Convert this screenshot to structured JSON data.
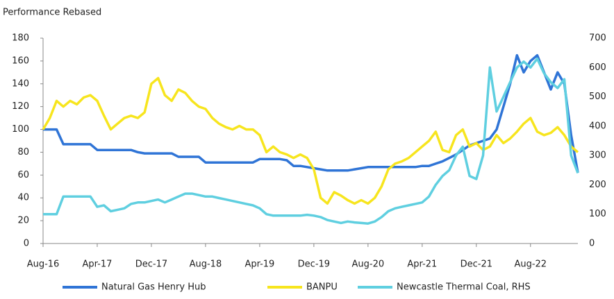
{
  "chart_data": {
    "type": "line",
    "title": "Performance Rebased",
    "categories": [
      "Aug-16",
      null,
      null,
      null,
      null,
      null,
      null,
      null,
      "Apr-17",
      null,
      null,
      null,
      null,
      null,
      null,
      null,
      "Dec-17",
      null,
      null,
      null,
      null,
      null,
      null,
      null,
      "Aug-18",
      null,
      null,
      null,
      null,
      null,
      null,
      null,
      "Apr-19",
      null,
      null,
      null,
      null,
      null,
      null,
      null,
      "Dec-19",
      null,
      null,
      null,
      null,
      null,
      null,
      null,
      "Aug-20",
      null,
      null,
      null,
      null,
      null,
      null,
      null,
      "Apr-21",
      null,
      null,
      null,
      null,
      null,
      null,
      null,
      "Dec-21",
      null,
      null,
      null,
      null,
      null,
      null,
      null,
      "Aug-22",
      null,
      null,
      null,
      null,
      null,
      null,
      null
    ],
    "ylim": [
      0,
      180
    ],
    "yticks": [
      0,
      20,
      40,
      60,
      80,
      100,
      120,
      140,
      160,
      180
    ],
    "y2lim": [
      0,
      700
    ],
    "y2ticks": [
      0,
      100,
      200,
      300,
      400,
      500,
      600,
      700
    ],
    "legend": "bottom",
    "series": [
      {
        "name": "Natural Gas Henry Hub",
        "color": "#2f74d6",
        "values": [
          100,
          100,
          100,
          87,
          87,
          87,
          87,
          87,
          82,
          82,
          82,
          82,
          82,
          82,
          80,
          79,
          79,
          79,
          79,
          79,
          76,
          76,
          76,
          76,
          71,
          71,
          71,
          71,
          71,
          71,
          71,
          71,
          74,
          74,
          74,
          74,
          73,
          68,
          68,
          67,
          66,
          65,
          64,
          64,
          64,
          64,
          65,
          66,
          67,
          67,
          67,
          67,
          67,
          67,
          67,
          67,
          68,
          68,
          70,
          72,
          75,
          78,
          82,
          86,
          88,
          90,
          92,
          100,
          120,
          140,
          165,
          150,
          160,
          165,
          150,
          135,
          150,
          140,
          95,
          62
        ]
      },
      {
        "name": "BANPU",
        "color": "#f7e51e",
        "values": [
          100,
          110,
          125,
          120,
          125,
          122,
          128,
          130,
          125,
          112,
          100,
          105,
          110,
          112,
          110,
          115,
          140,
          145,
          130,
          125,
          135,
          132,
          125,
          120,
          118,
          110,
          105,
          102,
          100,
          103,
          100,
          100,
          95,
          80,
          85,
          80,
          78,
          75,
          78,
          75,
          65,
          40,
          35,
          45,
          42,
          38,
          35,
          38,
          35,
          40,
          50,
          65,
          70,
          72,
          75,
          80,
          85,
          90,
          98,
          82,
          80,
          95,
          100,
          85,
          88,
          82,
          85,
          95,
          88,
          92,
          98,
          105,
          110,
          98,
          95,
          97,
          102,
          95,
          85,
          80
        ]
      },
      {
        "name": "Newcastle Thermal Coal, RHS",
        "color": "#5fcfe0",
        "axis": "y2",
        "values": [
          100,
          100,
          100,
          160,
          160,
          160,
          160,
          160,
          125,
          130,
          110,
          115,
          120,
          135,
          140,
          140,
          145,
          150,
          140,
          150,
          160,
          170,
          170,
          165,
          160,
          160,
          155,
          150,
          145,
          140,
          135,
          130,
          120,
          100,
          95,
          95,
          95,
          95,
          95,
          98,
          95,
          90,
          80,
          75,
          70,
          75,
          72,
          70,
          68,
          75,
          90,
          110,
          120,
          125,
          130,
          135,
          140,
          160,
          200,
          230,
          250,
          300,
          330,
          230,
          220,
          300,
          600,
          450,
          500,
          550,
          600,
          620,
          600,
          630,
          580,
          550,
          530,
          560,
          300,
          240
        ]
      }
    ]
  }
}
